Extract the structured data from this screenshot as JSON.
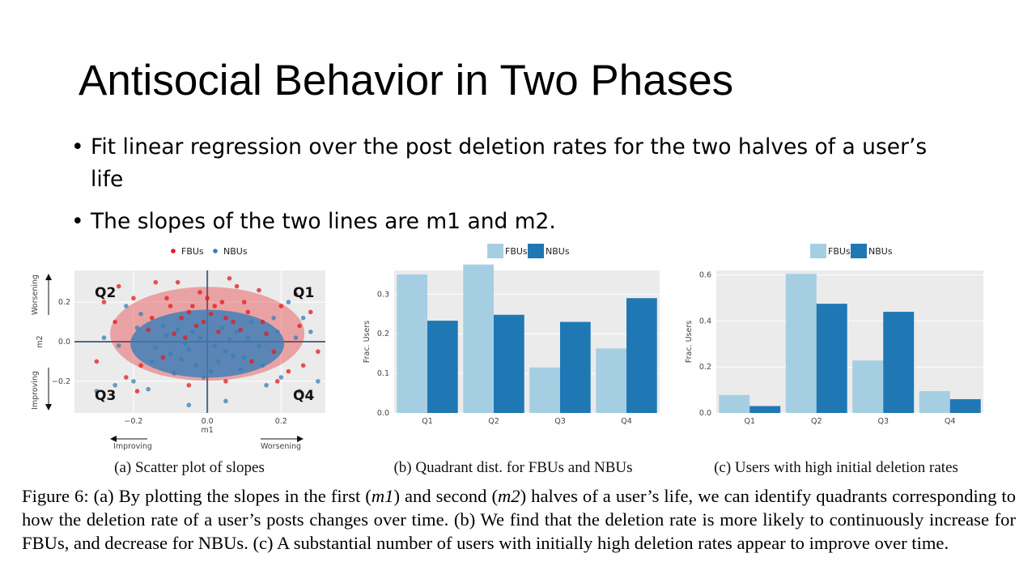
{
  "slide": {
    "title": "Antisocial Behavior in Two Phases",
    "bullets": [
      " Fit linear regression over the post deletion rates for the two halves of a user’s life",
      "The slopes of the two lines are m1 and m2."
    ]
  },
  "colors": {
    "fbu": "#e41a1c",
    "nbu": "#377eb8",
    "bar_fbu": "#a6cee3",
    "bar_nbu": "#1f78b4",
    "panel": "#ebebeb"
  },
  "chart_data": [
    {
      "type": "scatter",
      "caption": "(a) Scatter plot of slopes",
      "legend": [
        "FBUs",
        "NBUs"
      ],
      "xlabel": "m1",
      "ylabel": "m2",
      "xlim": [
        -0.36,
        0.32
      ],
      "ylim": [
        -0.36,
        0.36
      ],
      "x_ticks": [
        "−0.2",
        "0.0",
        "0.2"
      ],
      "y_ticks": [
        "0.2",
        "0.0",
        "−0.2"
      ],
      "quadrants": [
        "Q1",
        "Q2",
        "Q3",
        "Q4"
      ],
      "annotations": {
        "x_left": "Improving",
        "x_right": "Worsening",
        "y_top": "Worsening",
        "y_bottom": "Improving"
      },
      "series": [
        {
          "name": "FBUs",
          "color": "#e41a1c",
          "points": [
            [
              0.0,
              0.22
            ],
            [
              0.02,
              0.18
            ],
            [
              -0.02,
              0.25
            ],
            [
              0.05,
              0.12
            ],
            [
              -0.05,
              0.15
            ],
            [
              0.1,
              0.2
            ],
            [
              -0.1,
              0.18
            ],
            [
              0.15,
              0.1
            ],
            [
              -0.15,
              0.12
            ],
            [
              0.2,
              0.18
            ],
            [
              -0.2,
              0.22
            ],
            [
              0.25,
              0.08
            ],
            [
              -0.25,
              0.1
            ],
            [
              0.08,
              0.28
            ],
            [
              -0.08,
              0.3
            ],
            [
              0.12,
              -0.1
            ],
            [
              -0.12,
              -0.08
            ],
            [
              0.18,
              -0.05
            ],
            [
              -0.18,
              -0.12
            ],
            [
              0.22,
              -0.15
            ],
            [
              -0.22,
              -0.18
            ],
            [
              0.05,
              -0.2
            ],
            [
              -0.05,
              -0.22
            ],
            [
              0.28,
              0.15
            ],
            [
              -0.28,
              0.2
            ],
            [
              0.03,
              0.05
            ],
            [
              -0.03,
              0.08
            ],
            [
              0.06,
              0.32
            ],
            [
              -0.06,
              0.02
            ],
            [
              0.14,
              0.26
            ],
            [
              -0.14,
              0.3
            ],
            [
              0.3,
              -0.05
            ],
            [
              -0.3,
              -0.1
            ],
            [
              0.01,
              0.14
            ],
            [
              -0.01,
              0.1
            ],
            [
              0.09,
              0.06
            ],
            [
              -0.09,
              0.04
            ],
            [
              0.16,
              0.04
            ],
            [
              -0.16,
              0.06
            ],
            [
              0.24,
              0.24
            ],
            [
              -0.24,
              0.28
            ],
            [
              0.11,
              0.15
            ],
            [
              -0.11,
              0.22
            ],
            [
              0.04,
              0.2
            ],
            [
              -0.04,
              0.18
            ],
            [
              0.07,
              0.1
            ],
            [
              -0.07,
              0.12
            ],
            [
              0.19,
              -0.2
            ],
            [
              -0.19,
              -0.25
            ],
            [
              0.26,
              -0.12
            ]
          ]
        },
        {
          "name": "NBUs",
          "color": "#377eb8",
          "points": [
            [
              0.0,
              0.0
            ],
            [
              0.02,
              -0.02
            ],
            [
              -0.02,
              0.02
            ],
            [
              0.05,
              -0.05
            ],
            [
              -0.05,
              -0.04
            ],
            [
              0.1,
              -0.08
            ],
            [
              -0.1,
              -0.06
            ],
            [
              0.15,
              -0.12
            ],
            [
              -0.15,
              -0.1
            ],
            [
              0.2,
              -0.18
            ],
            [
              -0.2,
              -0.2
            ],
            [
              0.25,
              -0.25
            ],
            [
              -0.25,
              -0.22
            ],
            [
              0.08,
              0.05
            ],
            [
              -0.08,
              0.06
            ],
            [
              0.12,
              0.1
            ],
            [
              -0.12,
              0.08
            ],
            [
              0.18,
              0.12
            ],
            [
              -0.18,
              0.14
            ],
            [
              0.22,
              0.2
            ],
            [
              -0.22,
              0.18
            ],
            [
              0.05,
              -0.3
            ],
            [
              -0.05,
              -0.32
            ],
            [
              0.28,
              0.05
            ],
            [
              -0.28,
              0.02
            ],
            [
              0.03,
              -0.1
            ],
            [
              -0.03,
              -0.12
            ],
            [
              0.06,
              0.01
            ],
            [
              -0.06,
              -0.01
            ],
            [
              0.14,
              -0.02
            ],
            [
              -0.14,
              -0.03
            ],
            [
              0.3,
              -0.2
            ],
            [
              -0.3,
              -0.25
            ],
            [
              0.01,
              -0.15
            ],
            [
              -0.01,
              -0.18
            ],
            [
              0.09,
              -0.14
            ],
            [
              -0.09,
              -0.16
            ],
            [
              0.16,
              -0.22
            ],
            [
              -0.16,
              -0.24
            ],
            [
              0.24,
              0.02
            ],
            [
              -0.24,
              -0.02
            ],
            [
              0.11,
              0.02
            ],
            [
              -0.11,
              0.03
            ],
            [
              0.04,
              0.07
            ],
            [
              -0.04,
              0.05
            ],
            [
              0.07,
              -0.07
            ],
            [
              -0.07,
              -0.09
            ],
            [
              0.19,
              0.05
            ],
            [
              -0.19,
              0.07
            ],
            [
              0.26,
              0.12
            ]
          ]
        }
      ]
    },
    {
      "type": "bar",
      "caption": "(b) Quadrant dist. for FBUs and NBUs",
      "categories": [
        "Q1",
        "Q2",
        "Q3",
        "Q4"
      ],
      "ylabel": "Frac. Users",
      "ylim": [
        0,
        0.36
      ],
      "y_ticks": [
        "0.0",
        "0.1",
        "0.2",
        "0.3"
      ],
      "series": [
        {
          "name": "FBUs",
          "color": "#a6cee3",
          "values": [
            0.35,
            0.375,
            0.115,
            0.163
          ]
        },
        {
          "name": "NBUs",
          "color": "#1f78b4",
          "values": [
            0.233,
            0.248,
            0.23,
            0.29
          ]
        }
      ]
    },
    {
      "type": "bar",
      "caption": "(c) Users with high initial deletion rates",
      "categories": [
        "Q1",
        "Q2",
        "Q3",
        "Q4"
      ],
      "ylabel": "Frac. Users",
      "ylim": [
        0,
        0.62
      ],
      "y_ticks": [
        "0.0",
        "0.2",
        "0.4",
        "0.6"
      ],
      "series": [
        {
          "name": "FBUs",
          "color": "#a6cee3",
          "values": [
            0.078,
            0.605,
            0.228,
            0.095
          ]
        },
        {
          "name": "NBUs",
          "color": "#1f78b4",
          "values": [
            0.03,
            0.475,
            0.44,
            0.06
          ]
        }
      ]
    }
  ],
  "figure_caption": {
    "parts": [
      "Figure 6: (a) By plotting the slopes in the first (",
      "m1",
      ") and second (",
      "m2",
      ") halves of a user’s life, we can identify quadrants corresponding to how the deletion rate of a user’s posts changes over time. (b) We find that the deletion rate is more likely to continuously increase for FBUs, and decrease for NBUs. (c) A substantial number of users with initially high deletion rates appear to improve over time."
    ]
  }
}
